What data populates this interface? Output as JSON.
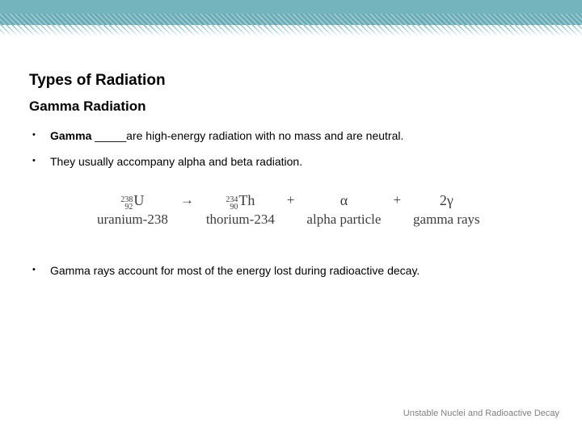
{
  "slide": {
    "title": "Types of Radiation",
    "subtitle": "Gamma Radiation",
    "bullet_char": "•",
    "bullets": [
      {
        "bold": "Gamma",
        "rest": " _____are high-energy radiation with no mass and are neutral."
      },
      {
        "bold": "",
        "rest": "They usually accompany alpha and beta radiation."
      },
      {
        "bold": "",
        "rest": "Gamma rays account for most of the energy lost during radioactive decay."
      }
    ],
    "equation": {
      "arrow": "→",
      "plus": "+",
      "terms": [
        {
          "mass": "238",
          "atomic": "92",
          "symbol": "U",
          "label": "uranium-238"
        },
        {
          "mass": "234",
          "atomic": "90",
          "symbol": "Th",
          "label": "thorium-234"
        },
        {
          "symbol": "α",
          "label": "alpha particle"
        },
        {
          "symbol": "2γ",
          "label": "gamma rays"
        }
      ]
    },
    "footer": "Unstable Nuclei and Radioactive Decay"
  },
  "colors": {
    "banner_teal": "#74b4bd",
    "banner_teal_dark": "#69acb6",
    "equation_ink": "#3d3d3d",
    "footer_gray": "#7f7f7f",
    "text_black": "#000000"
  }
}
